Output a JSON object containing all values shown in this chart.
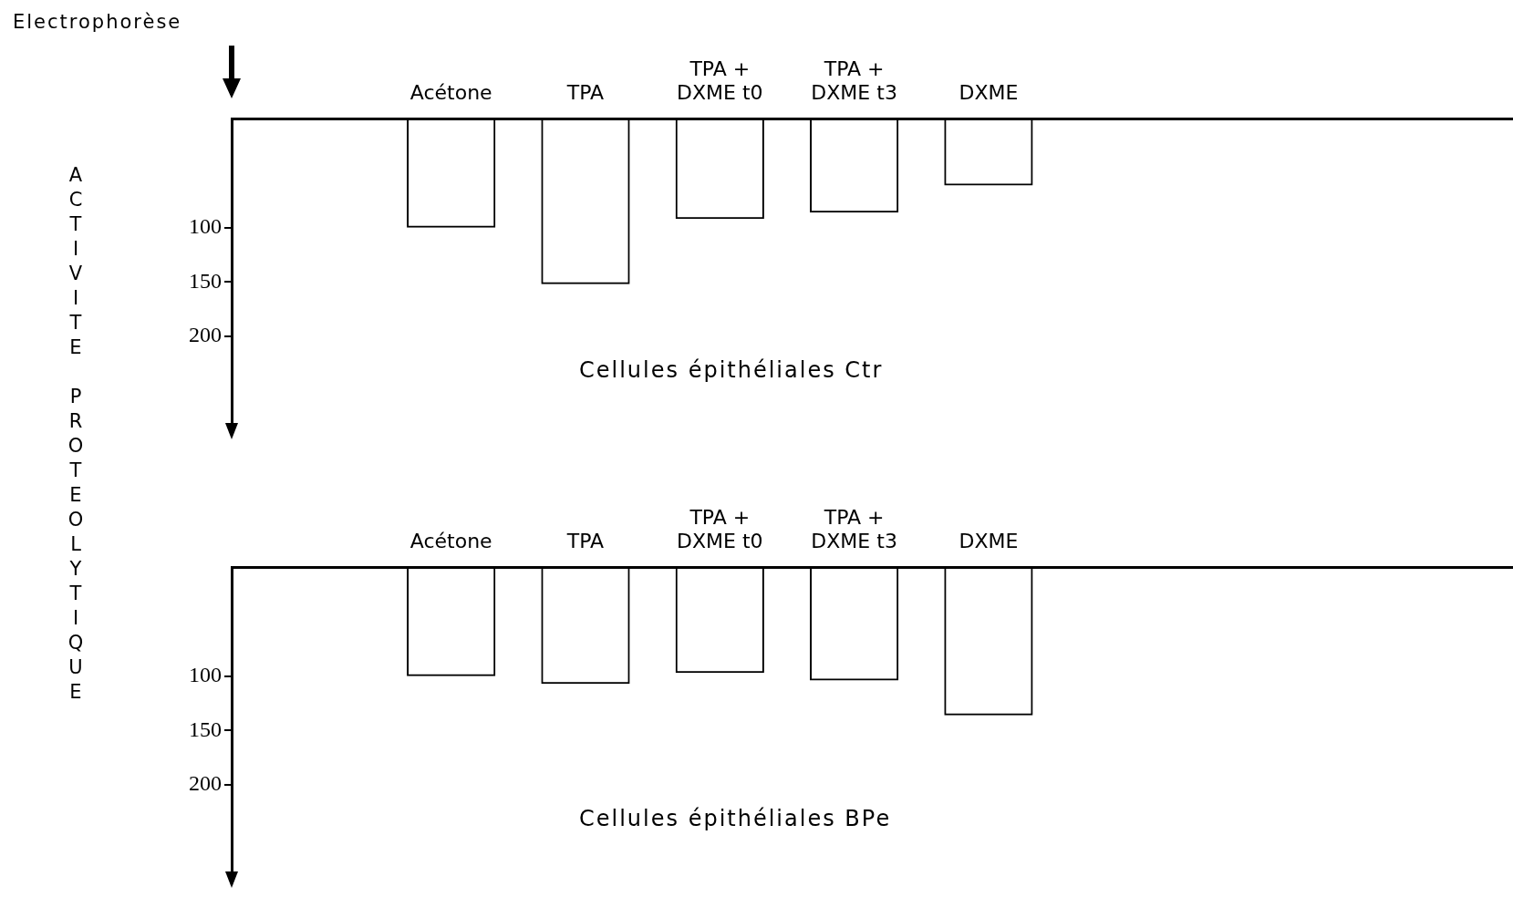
{
  "chart_data": [
    {
      "type": "bar",
      "xlabel": "Cellules épithéliales Ctr",
      "ylabel": "ACTIVITE PROTEOLYTIQUE",
      "annotations": [
        "Electrophorèse"
      ],
      "categories": [
        "Acétone",
        "TPA",
        "TPA +\nDXME t0",
        "TPA +\nDXME t3",
        "DXME"
      ],
      "values": [
        100,
        152,
        92,
        86,
        61
      ],
      "color": "#000000",
      "ylim": [
        280,
        0
      ],
      "yticks": [
        100,
        150,
        200
      ]
    },
    {
      "type": "bar",
      "xlabel": "Cellules épithéliales BPe",
      "categories": [
        "Acétone",
        "TPA",
        "TPA +\nDXME t0",
        "TPA +\nDXME t3",
        "DXME"
      ],
      "values": [
        100,
        107,
        97,
        104,
        136
      ],
      "color": "#000000",
      "ylim": [
        280,
        0
      ],
      "yticks": [
        100,
        150,
        200
      ]
    }
  ]
}
